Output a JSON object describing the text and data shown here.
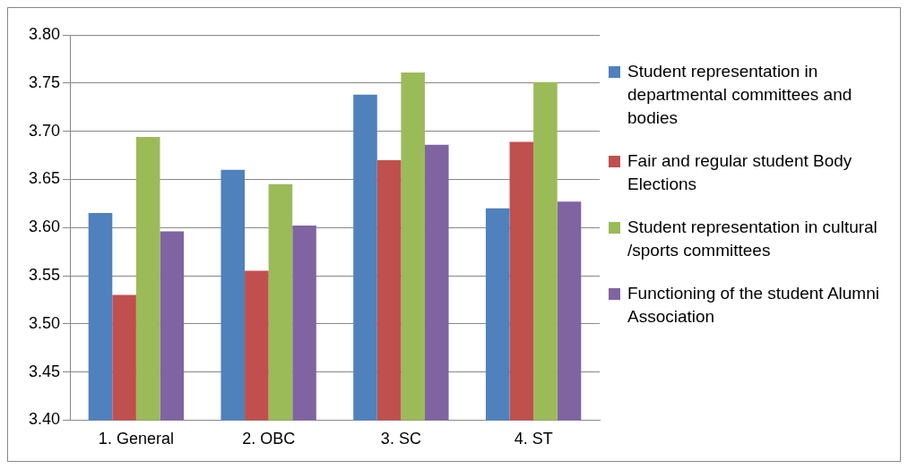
{
  "chart_data": {
    "type": "bar",
    "categories": [
      "1. General",
      "2. OBC",
      "3. SC",
      "4. ST"
    ],
    "series": [
      {
        "name": "Student representation in departmental committees and bodies",
        "color": "#4f81bd",
        "values": [
          3.615,
          3.66,
          3.738,
          3.62
        ]
      },
      {
        "name": "Fair and regular student Body Elections",
        "color": "#c0504d",
        "values": [
          3.53,
          3.555,
          3.67,
          3.689
        ]
      },
      {
        "name": "Student representation in cultural /sports committees",
        "color": "#9bbb59",
        "values": [
          3.694,
          3.645,
          3.761,
          3.751
        ]
      },
      {
        "name": "Functioning of the student Alumni Association",
        "color": "#8064a2",
        "values": [
          3.596,
          3.602,
          3.686,
          3.627
        ]
      }
    ],
    "ylim": [
      3.4,
      3.8
    ],
    "yticks": [
      {
        "value": 3.4,
        "label": "3.40"
      },
      {
        "value": 3.45,
        "label": "3.45"
      },
      {
        "value": 3.5,
        "label": "3.50"
      },
      {
        "value": 3.55,
        "label": "3.55"
      },
      {
        "value": 3.6,
        "label": "3.60"
      },
      {
        "value": 3.65,
        "label": "3.65"
      },
      {
        "value": 3.7,
        "label": "3.70"
      },
      {
        "value": 3.75,
        "label": "3.75"
      },
      {
        "value": 3.8,
        "label": "3.80"
      }
    ],
    "grid": "y",
    "legend": "right"
  }
}
